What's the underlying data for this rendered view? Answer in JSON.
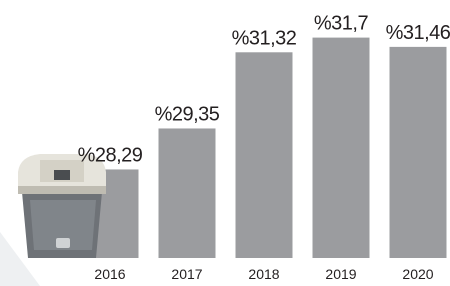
{
  "chart_data": {
    "type": "bar",
    "categories": [
      "2016",
      "2017",
      "2018",
      "2019",
      "2020"
    ],
    "values": [
      28.29,
      29.35,
      31.32,
      31.7,
      31.46
    ],
    "value_labels": [
      "%28,29",
      "%29,35",
      "%31,32",
      "%31,7",
      "%31,46"
    ],
    "color": "#9b9c9f",
    "ylim": [
      26,
      32
    ]
  }
}
